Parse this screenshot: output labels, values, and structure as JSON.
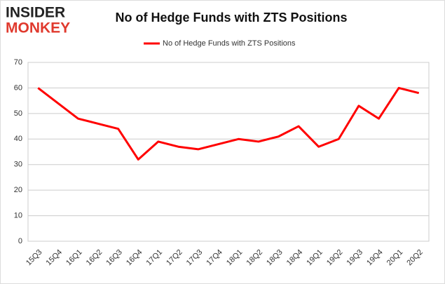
{
  "logo": {
    "line1": "INSIDER",
    "line2": "MONKEY"
  },
  "chart_data": {
    "type": "line",
    "title": "No of Hedge Funds with ZTS Positions",
    "categories": [
      "15Q3",
      "15Q4",
      "16Q1",
      "16Q2",
      "16Q3",
      "16Q4",
      "17Q1",
      "17Q2",
      "17Q3",
      "17Q4",
      "18Q1",
      "18Q2",
      "18Q3",
      "18Q4",
      "19Q1",
      "19Q2",
      "19Q3",
      "19Q4",
      "20Q1",
      "20Q2"
    ],
    "series": [
      {
        "name": "No of Hedge Funds with ZTS Positions",
        "color": "#ff0000",
        "values": [
          60,
          54,
          48,
          46,
          44,
          32,
          39,
          37,
          36,
          38,
          40,
          39,
          41,
          45,
          37,
          40,
          53,
          48,
          60,
          58
        ]
      }
    ],
    "ylim": [
      0,
      70
    ],
    "yticks": [
      0,
      10,
      20,
      30,
      40,
      50,
      60,
      70
    ],
    "grid": true,
    "legend": "top"
  }
}
